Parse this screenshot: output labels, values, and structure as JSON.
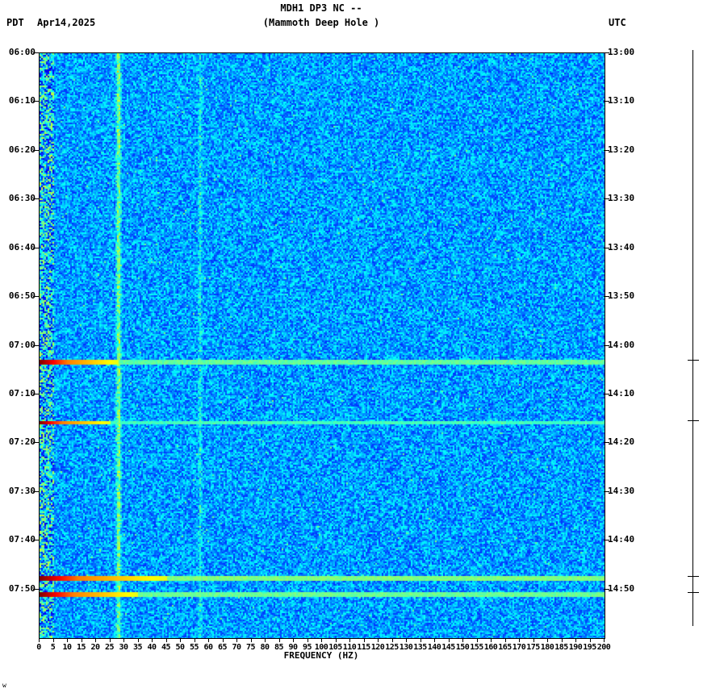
{
  "header": {
    "title": "MDH1 DP3 NC --",
    "subtitle": "(Mammoth Deep Hole )",
    "tz_left": "PDT",
    "date": "Apr14,2025",
    "tz_right": "UTC"
  },
  "x_axis": {
    "label": "FREQUENCY (HZ)",
    "min_hz": 0,
    "max_hz": 200,
    "tick_step_hz": 5,
    "tick_labels": [
      "0",
      "5",
      "10",
      "15",
      "20",
      "25",
      "30",
      "35",
      "40",
      "45",
      "50",
      "55",
      "60",
      "65",
      "70",
      "75",
      "80",
      "85",
      "90",
      "95",
      "100",
      "105",
      "110",
      "115",
      "120",
      "125",
      "130",
      "135",
      "140",
      "145",
      "150",
      "155",
      "160",
      "165",
      "170",
      "175",
      "180",
      "185",
      "190",
      "195",
      "200"
    ]
  },
  "y_axis_left": {
    "timezone": "PDT",
    "tick_labels": [
      "06:00",
      "06:10",
      "06:20",
      "06:30",
      "06:40",
      "06:50",
      "07:00",
      "07:10",
      "07:20",
      "07:30",
      "07:40",
      "07:50"
    ]
  },
  "y_axis_right": {
    "timezone": "UTC",
    "tick_labels": [
      "13:00",
      "13:10",
      "13:20",
      "13:30",
      "13:40",
      "13:50",
      "14:00",
      "14:10",
      "14:20",
      "14:30",
      "14:40",
      "14:50"
    ]
  },
  "watermark": "w",
  "chart_data": {
    "type": "heatmap",
    "title": "MDH1 DP3 NC -- (Mammoth Deep Hole ) seismic spectrogram",
    "xlabel": "FREQUENCY (HZ)",
    "x_range_hz": [
      0,
      200
    ],
    "time_start_pdt": "06:00",
    "time_end_pdt": "08:00",
    "time_start_utc": "13:00",
    "time_end_utc": "15:00",
    "time_span_minutes": 120,
    "colormap": "jet",
    "background": "low-amplitude blue noise",
    "seed": 42,
    "noise": {
      "base": 0.17,
      "spread": 0.22,
      "low_freq_below_hz": 5,
      "low_base": 0.08,
      "low_spread": 0.5
    },
    "vertical_lines_hz": [
      {
        "hz": 28,
        "strength": "bright",
        "boost": 0.2
      },
      {
        "hz": 57,
        "strength": "faint",
        "boost": 0.1
      }
    ],
    "events": [
      {
        "time_pdt": "07:03",
        "time_utc": "14:03",
        "minutes_after_start": 63.0,
        "red_to_hz": 10,
        "yellow_to_hz": 28,
        "band_level": 0.47,
        "thickness_px": 4
      },
      {
        "time_pdt": "07:16",
        "time_utc": "14:16",
        "minutes_after_start": 75.5,
        "red_to_hz": 8,
        "yellow_to_hz": 25,
        "band_level": 0.44,
        "thickness_px": 4
      },
      {
        "time_pdt": "07:48",
        "time_utc": "14:48",
        "minutes_after_start": 107.5,
        "red_to_hz": 14,
        "yellow_to_hz": 45,
        "band_level": 0.5,
        "thickness_px": 5
      },
      {
        "time_pdt": "07:51",
        "time_utc": "14:51",
        "minutes_after_start": 110.7,
        "red_to_hz": 12,
        "yellow_to_hz": 35,
        "band_level": 0.48,
        "thickness_px": 4
      }
    ]
  }
}
